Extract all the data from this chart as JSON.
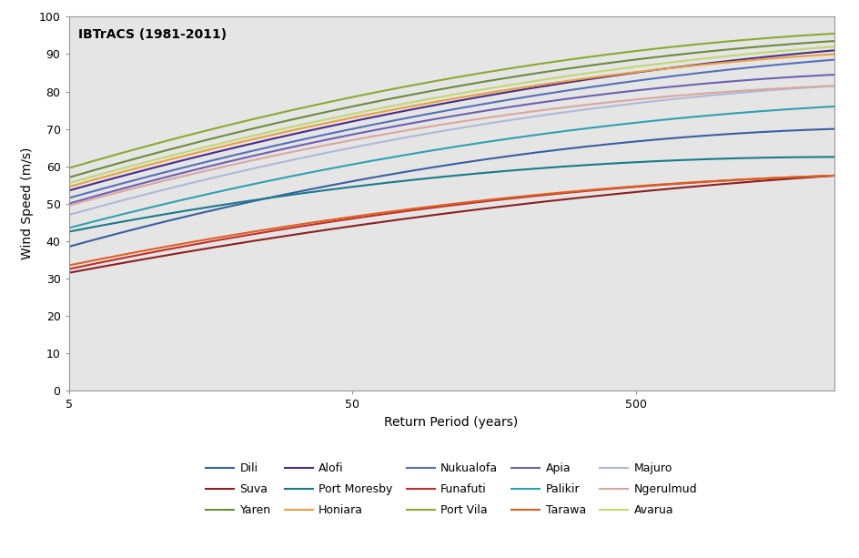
{
  "title": "IBTrACS (1981-2011)",
  "xlabel": "Return Period (years)",
  "ylabel": "Wind Speed (m/s)",
  "xlim_log": [
    5,
    2500
  ],
  "ylim": [
    0,
    100
  ],
  "yticks": [
    0,
    10,
    20,
    30,
    40,
    50,
    60,
    70,
    80,
    90,
    100
  ],
  "xticks": [
    5,
    50,
    500
  ],
  "background_color": "#e5e5e5",
  "series": [
    {
      "label": "Dili",
      "color": "#3a5fa0",
      "y5": 38.5,
      "y50": 56.0,
      "y2500": 70.0
    },
    {
      "label": "Suva",
      "color": "#8b2020",
      "y5": 31.5,
      "y50": 44.0,
      "y2500": 57.5
    },
    {
      "label": "Yaren",
      "color": "#6b8c3a",
      "y5": 57.0,
      "y50": 76.0,
      "y2500": 93.5
    },
    {
      "label": "Alofi",
      "color": "#4a2d8a",
      "y5": 53.5,
      "y50": 72.0,
      "y2500": 91.0
    },
    {
      "label": "Port Moresby",
      "color": "#1a7a8a",
      "y5": 42.5,
      "y50": 54.5,
      "y2500": 62.5
    },
    {
      "label": "Honiara",
      "color": "#e8a040",
      "y5": 54.5,
      "y50": 73.0,
      "y2500": 90.0
    },
    {
      "label": "Nukualofa",
      "color": "#5570b8",
      "y5": 51.5,
      "y50": 70.0,
      "y2500": 88.5
    },
    {
      "label": "Funafuti",
      "color": "#c03030",
      "y5": 32.5,
      "y50": 46.0,
      "y2500": 57.5
    },
    {
      "label": "Port Vila",
      "color": "#8aaa30",
      "y5": 59.5,
      "y50": 78.5,
      "y2500": 95.5
    },
    {
      "label": "Apia",
      "color": "#7060b0",
      "y5": 50.0,
      "y50": 68.5,
      "y2500": 84.5
    },
    {
      "label": "Palikir",
      "color": "#30a0b0",
      "y5": 43.5,
      "y50": 60.5,
      "y2500": 76.0
    },
    {
      "label": "Tarawa",
      "color": "#e06020",
      "y5": 33.5,
      "y50": 46.5,
      "y2500": 57.5
    },
    {
      "label": "Majuro",
      "color": "#b0b8d8",
      "y5": 47.0,
      "y50": 65.0,
      "y2500": 81.5
    },
    {
      "label": "Ngerulmud",
      "color": "#d8a8a0",
      "y5": 49.5,
      "y50": 67.0,
      "y2500": 81.5
    },
    {
      "label": "Avarua",
      "color": "#c0d870",
      "y5": 55.5,
      "y50": 74.0,
      "y2500": 92.0
    }
  ],
  "legend_order": [
    "Dili",
    "Suva",
    "Yaren",
    "Alofi",
    "Port Moresby",
    "Honiara",
    "Nukualofa",
    "Funafuti",
    "Port Vila",
    "Apia",
    "Palikir",
    "Tarawa",
    "Majuro",
    "Ngerulmud",
    "Avarua"
  ]
}
